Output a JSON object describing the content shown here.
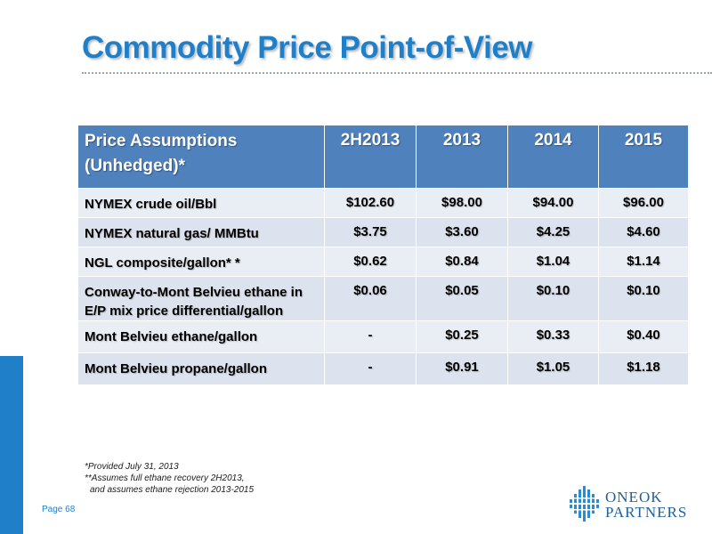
{
  "title": "Commodity Price Point-of-View",
  "table": {
    "header_label": "Price Assumptions (Unhedged)*",
    "header_label_line1": "Price Assumptions",
    "header_label_line2": "(Unhedged)*",
    "periods": [
      "2H2013",
      "2013",
      "2014",
      "2015"
    ],
    "rows": [
      {
        "label_line1": "NYMEX crude oil/Bbl",
        "label_line2": "",
        "values": [
          "$102.60",
          "$98.00",
          "$94.00",
          "$96.00"
        ]
      },
      {
        "label_line1": "NYMEX natural gas/ MMBtu",
        "label_line2": "",
        "values": [
          "$3.75",
          "$3.60",
          "$4.25",
          "$4.60"
        ]
      },
      {
        "label_line1": "NGL composite/gallon* *",
        "label_line2": "",
        "values": [
          "$0.62",
          "$0.84",
          "$1.04",
          "$1.14"
        ]
      },
      {
        "label_line1": "Conway-to-Mont Belvieu ethane in",
        "label_line2": "E/P mix price differential/gallon",
        "values": [
          "$0.06",
          "$0.05",
          "$0.10",
          "$0.10"
        ]
      },
      {
        "label_line1": "Mont Belvieu ethane/gallon",
        "label_line2": "",
        "values": [
          "-",
          "$0.25",
          "$0.33",
          "$0.40"
        ]
      },
      {
        "label_line1": "Mont Belvieu propane/gallon",
        "label_line2": "",
        "values": [
          "-",
          "$0.91",
          "$1.05",
          "$1.18"
        ]
      }
    ]
  },
  "footnotes": {
    "line1": "*Provided July 31, 2013",
    "line2": "**Assumes full ethane recovery 2H2013,",
    "line3": "and assumes ethane rejection 2013-2015"
  },
  "page_label": "Page 68",
  "logo": {
    "line1": "ONEOK",
    "line2": "PARTNERS"
  },
  "colors": {
    "accent": "#1f7fc8",
    "header_fill": "#4f81bd",
    "row_fill": "#e9edf4"
  }
}
